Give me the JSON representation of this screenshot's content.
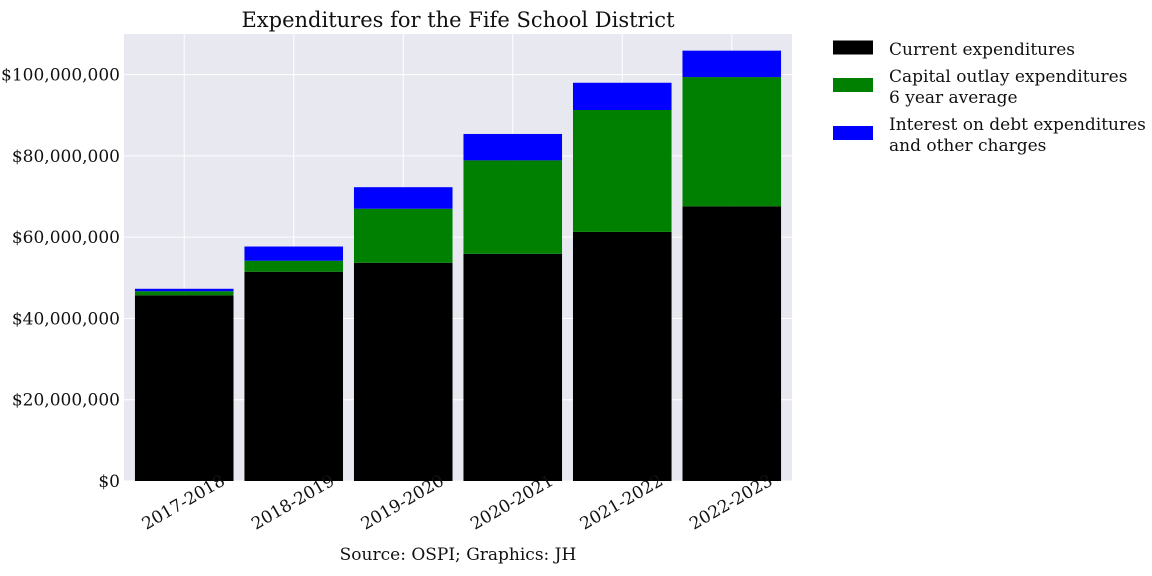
{
  "chart_data": {
    "type": "bar",
    "stacked": true,
    "title": "Expenditures for the Fife School District",
    "xlabel": "Source: OSPI; Graphics: JH",
    "ylabel": "",
    "categories": [
      "2017-2018",
      "2018-2019",
      "2019-2020",
      "2020-2021",
      "2021-2022",
      "2022-2023"
    ],
    "series": [
      {
        "name": "Current expenditures",
        "color": "#000000",
        "values": [
          45700000,
          51500000,
          53700000,
          55900000,
          61300000,
          67600000
        ]
      },
      {
        "name": "Capital outlay expenditures\n6 year average",
        "color": "#008000",
        "values": [
          1000000,
          2700000,
          13300000,
          23000000,
          30000000,
          31800000
        ]
      },
      {
        "name": "Interest on debt expenditures\nand other charges",
        "color": "#0000ff",
        "values": [
          600000,
          3500000,
          5300000,
          6500000,
          6700000,
          6500000
        ]
      }
    ],
    "ylim": [
      0,
      110000000
    ],
    "yticks": [
      0,
      20000000,
      40000000,
      60000000,
      80000000,
      100000000
    ],
    "ytick_labels": [
      "$0",
      "$20,000,000",
      "$40,000,000",
      "$60,000,000",
      "$80,000,000",
      "$100,000,000"
    ],
    "grid": true,
    "legend_position": "outside-right"
  }
}
